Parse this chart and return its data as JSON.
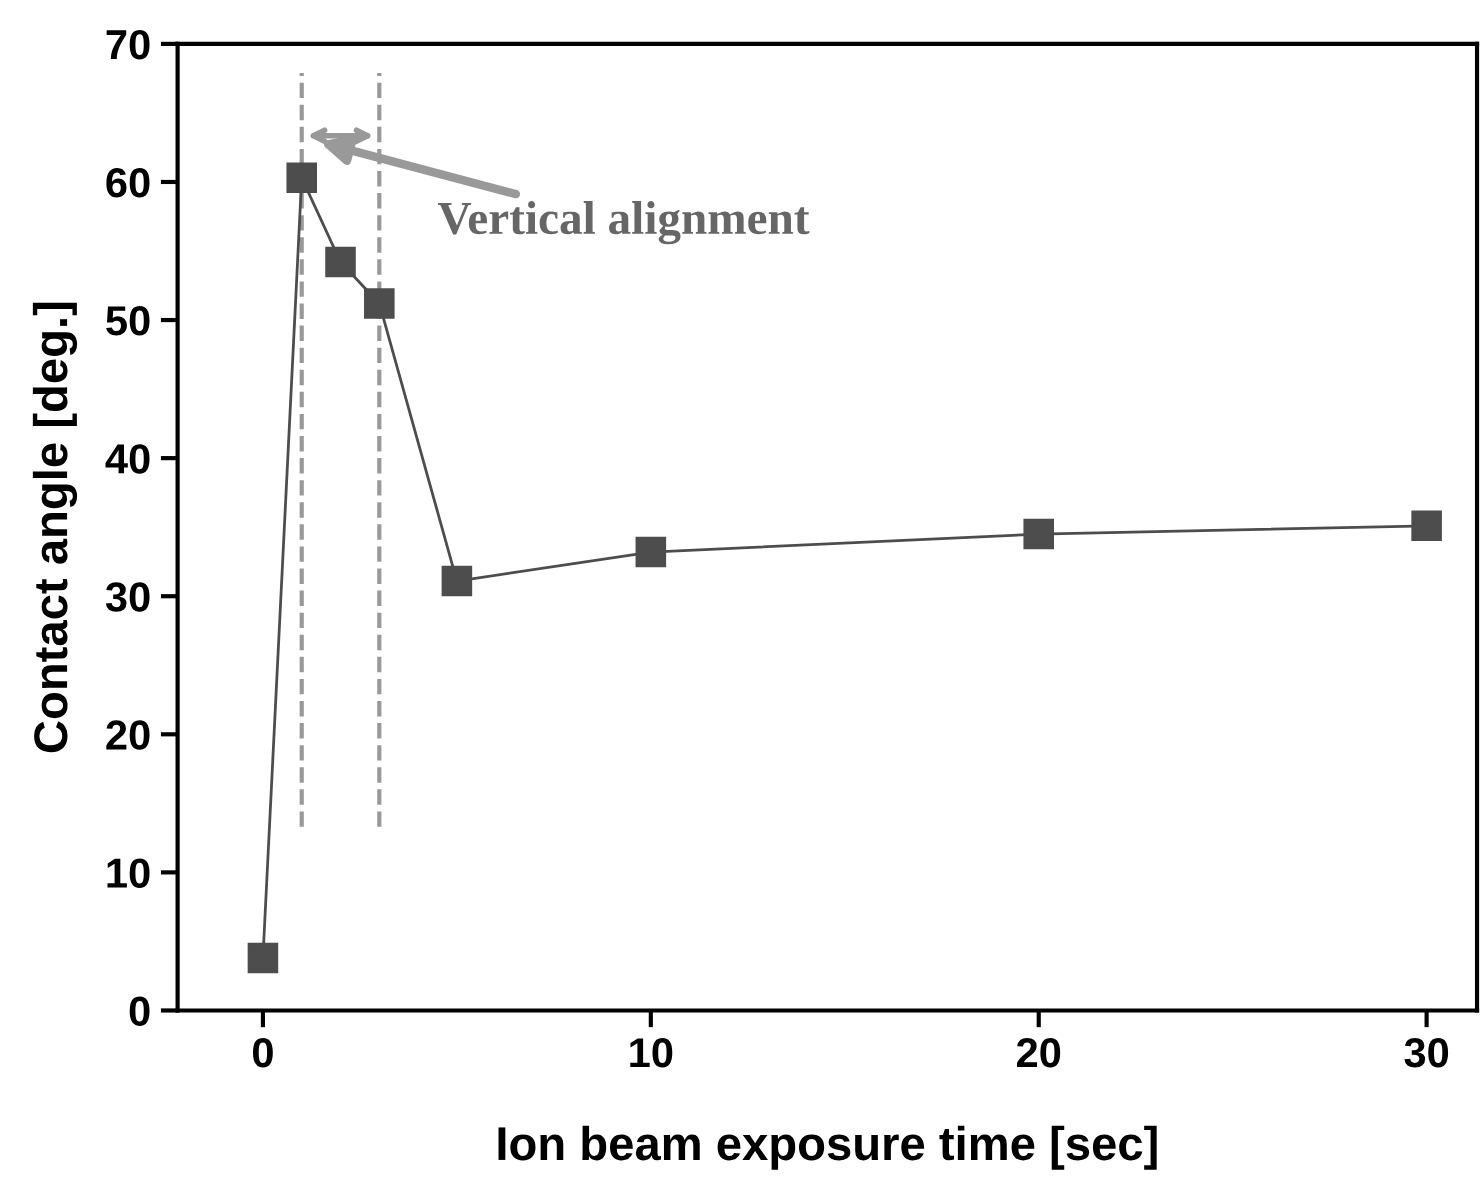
{
  "chart_data": {
    "type": "line",
    "xlabel": "Ion beam exposure time [sec]",
    "ylabel": "Contact angle [deg.]",
    "x": [
      0,
      1,
      2,
      3,
      5,
      10,
      20,
      30
    ],
    "series": [
      {
        "color": "#4d4d4d",
        "values": [
          3.8,
          60.3,
          54.2,
          51.2,
          31.1,
          33.2,
          34.5,
          35.1
        ]
      }
    ],
    "marker": "square",
    "line_style": "solid",
    "grid": false,
    "legend": false,
    "xlim": [
      -2.2,
      31.3
    ],
    "xticks": [
      0,
      10,
      20,
      30
    ],
    "ylim": [
      0,
      70
    ],
    "yticks": [
      0,
      10,
      20,
      30,
      40,
      50,
      60,
      70
    ],
    "ref_lines": [
      {
        "axis": "x",
        "value": 1,
        "color": "#999999",
        "line_style": "dashed"
      },
      {
        "axis": "x",
        "value": 3,
        "color": "#999999",
        "line_style": "dashed"
      }
    ],
    "annotations": [
      "Vertical alignment"
    ]
  }
}
